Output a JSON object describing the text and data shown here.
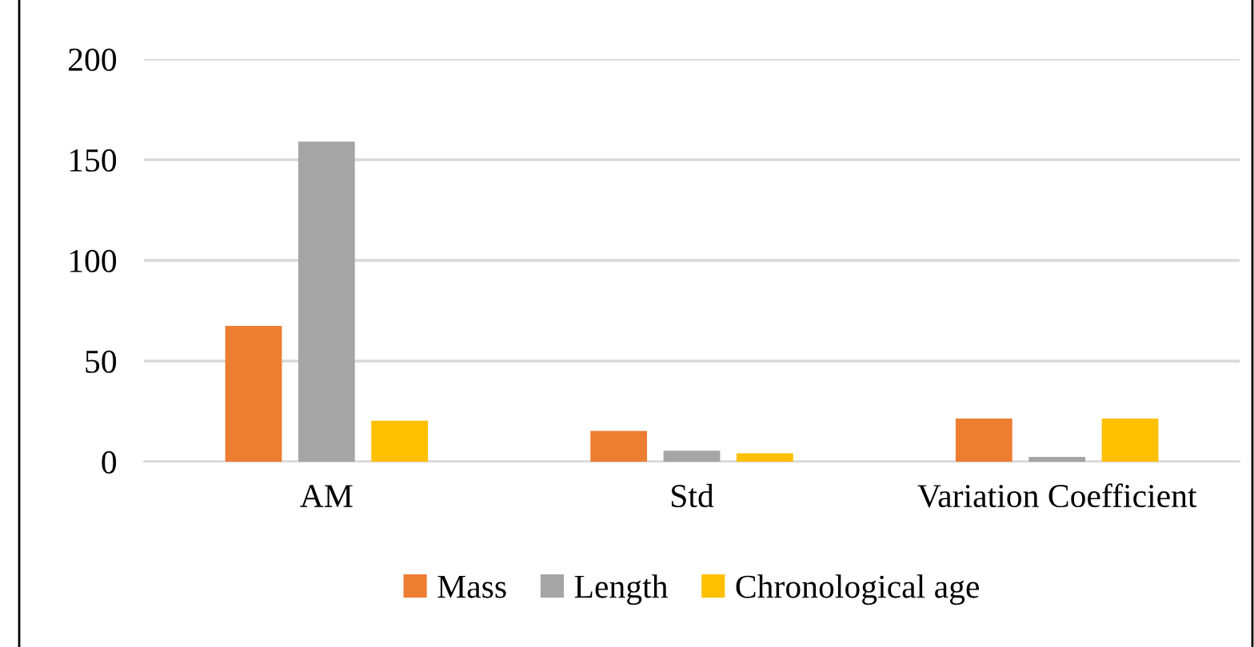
{
  "chart_data": {
    "type": "bar",
    "categories": [
      "AM",
      "Std",
      "Variation Coefficient"
    ],
    "series": [
      {
        "name": "Mass",
        "color": "#ed7d31",
        "values": [
          67.5,
          15.3,
          21.4
        ]
      },
      {
        "name": "Length",
        "color": "#a5a5a5",
        "values": [
          159,
          5.5,
          2.4
        ]
      },
      {
        "name": "Chronological age",
        "color": "#ffc000",
        "values": [
          20.3,
          4.2,
          21.4
        ]
      }
    ],
    "ylim": [
      0,
      200
    ],
    "yticks": [
      0,
      50,
      100,
      150,
      200
    ],
    "grid": "y",
    "legend": "bottom"
  }
}
